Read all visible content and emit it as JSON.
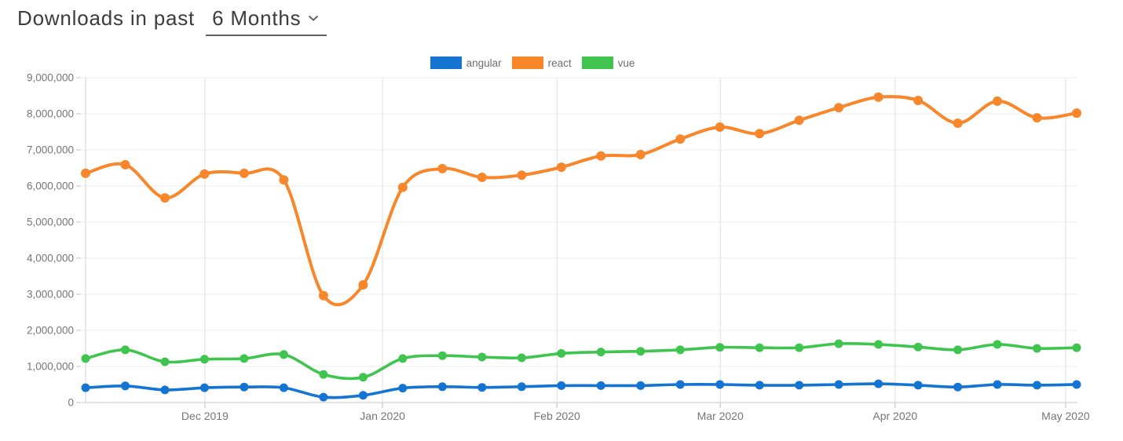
{
  "page": {
    "title_prefix": "Downloads in past",
    "period_selector": {
      "value": "6 Months"
    }
  },
  "legend": {
    "position": "top-center",
    "items": [
      {
        "label": "angular",
        "color": "#1375d1"
      },
      {
        "label": "react",
        "color": "#f8862a"
      },
      {
        "label": "vue",
        "color": "#3fc54e"
      }
    ]
  },
  "chart_data": {
    "type": "line",
    "title": "Downloads in past 6 Months",
    "x_unit": "week",
    "curve": "smooth",
    "grid": true,
    "legend_position": "top",
    "ylim": [
      0,
      9000000
    ],
    "y_ticks": [
      "0",
      "1,000,000",
      "2,000,000",
      "3,000,000",
      "4,000,000",
      "5,000,000",
      "6,000,000",
      "7,000,000",
      "8,000,000",
      "9,000,000"
    ],
    "x_ticks": [
      {
        "label": "Dec 2019",
        "pos": 3.01
      },
      {
        "label": "Jan 2020",
        "pos": 7.49
      },
      {
        "label": "Feb 2020",
        "pos": 11.89
      },
      {
        "label": "Mar 2020",
        "pos": 16.01
      },
      {
        "label": "Apr 2020",
        "pos": 20.42
      },
      {
        "label": "May 2020",
        "pos": 24.72
      }
    ],
    "series": [
      {
        "name": "angular",
        "color": "#1375d1",
        "values": [
          410000,
          460000,
          350000,
          410000,
          430000,
          410000,
          150000,
          200000,
          400000,
          440000,
          420000,
          440000,
          470000,
          470000,
          470000,
          500000,
          500000,
          480000,
          480000,
          500000,
          520000,
          480000,
          430000,
          500000,
          480000,
          500000
        ]
      },
      {
        "name": "react",
        "color": "#f8862a",
        "values": [
          6350000,
          6590000,
          5670000,
          6330000,
          6350000,
          6170000,
          2960000,
          3260000,
          5960000,
          6480000,
          6240000,
          6300000,
          6520000,
          6830000,
          6870000,
          7300000,
          7630000,
          7450000,
          7820000,
          8170000,
          8460000,
          8370000,
          7740000,
          8350000,
          7890000,
          8020000
        ]
      },
      {
        "name": "vue",
        "color": "#3fc54e",
        "values": [
          1220000,
          1460000,
          1130000,
          1200000,
          1220000,
          1330000,
          780000,
          700000,
          1220000,
          1300000,
          1260000,
          1240000,
          1360000,
          1400000,
          1420000,
          1460000,
          1530000,
          1520000,
          1520000,
          1630000,
          1610000,
          1540000,
          1460000,
          1610000,
          1500000,
          1520000
        ]
      }
    ]
  }
}
